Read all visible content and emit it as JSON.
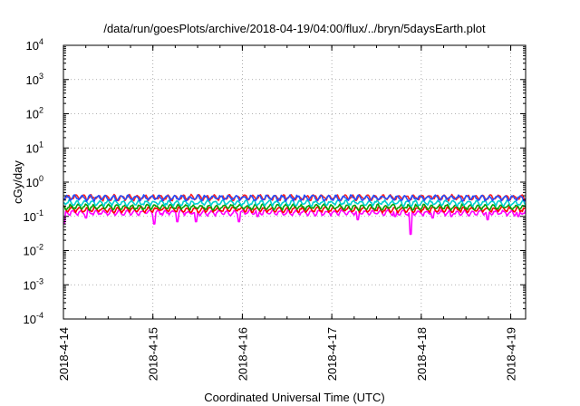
{
  "chart_data": {
    "type": "line",
    "title": "/data/run/goesPlots/archive/2018-04-19/04:00/flux/../bryn/5daysEarth.plot",
    "xlabel": "Coordinated Universal Time (UTC)",
    "ylabel": "cGy/day",
    "y_scale": "log",
    "ylim": [
      0.0001,
      10000
    ],
    "x_range": [
      "2018-04-14 00:00",
      "2018-04-19 04:00"
    ],
    "x_ticks": [
      "2018-4-14",
      "2018-4-15",
      "2018-4-16",
      "2018-4-17",
      "2018-4-18",
      "2018-4-19"
    ],
    "y_ticks": [
      {
        "base": "10",
        "exp": "-4"
      },
      {
        "base": "10",
        "exp": "-3"
      },
      {
        "base": "10",
        "exp": "-2"
      },
      {
        "base": "10",
        "exp": "-1"
      },
      {
        "base": "10",
        "exp": "0"
      },
      {
        "base": "10",
        "exp": "1"
      },
      {
        "base": "10",
        "exp": "2"
      },
      {
        "base": "10",
        "exp": "3"
      },
      {
        "base": "10",
        "exp": "4"
      }
    ],
    "grid": "dotted",
    "series": [
      {
        "color": "#ff00ff",
        "baseline": 0.13,
        "dips": [
          [
            "2018-04-14 00:06",
            0.06
          ],
          [
            "2018-04-14 06:00",
            0.09
          ],
          [
            "2018-04-15 00:15",
            0.06
          ],
          [
            "2018-04-15 06:30",
            0.07
          ],
          [
            "2018-04-15 11:30",
            0.07
          ],
          [
            "2018-04-15 23:00",
            0.07
          ],
          [
            "2018-04-16 04:00",
            0.1
          ],
          [
            "2018-04-17 07:00",
            0.08
          ],
          [
            "2018-04-17 17:00",
            0.1
          ],
          [
            "2018-04-17 21:12",
            0.03
          ],
          [
            "2018-04-18 03:00",
            0.09
          ],
          [
            "2018-04-18 08:00",
            0.1
          ],
          [
            "2018-04-18 17:45",
            0.08
          ],
          [
            "2018-04-19 02:00",
            0.1
          ]
        ]
      },
      {
        "color": "#ff0000",
        "baseline": 0.16,
        "dips": []
      },
      {
        "color": "#00a000",
        "baseline": 0.19,
        "dips": []
      },
      {
        "color": "#00d0d0",
        "baseline": 0.25,
        "dips": []
      },
      {
        "color": "#ff2020",
        "baseline": 0.36,
        "dips": []
      },
      {
        "color": "#1f4fff",
        "baseline": 0.35,
        "dips": []
      }
    ]
  }
}
